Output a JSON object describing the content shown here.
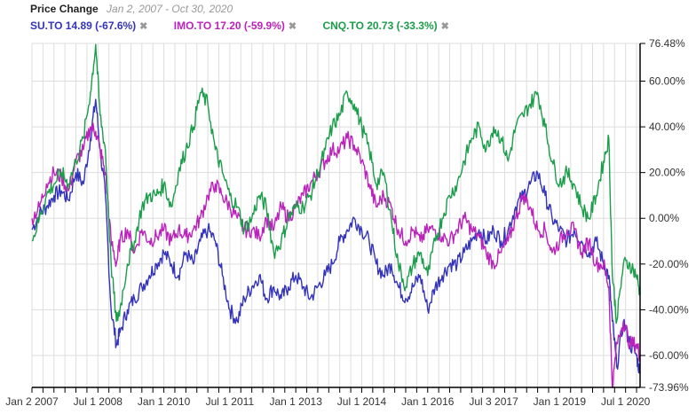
{
  "header": {
    "title": "Price Change",
    "range": "Jan 2, 2007 - Oct 30, 2020"
  },
  "legend": [
    {
      "label": "SU.TO 14.89 (-67.6%)",
      "color": "#3333bb",
      "remove": "✖"
    },
    {
      "label": "IMO.TO 17.20 (-59.9%)",
      "color": "#bb22bb",
      "remove": "✖"
    },
    {
      "label": "CNQ.TO 20.73 (-33.3%)",
      "color": "#1a9e4a",
      "remove": "✖"
    }
  ],
  "chart_data": {
    "type": "line",
    "title": "Price Change",
    "xlabel": "",
    "ylabel": "",
    "x_range": [
      2007.0,
      2020.83
    ],
    "ylim": [
      -73.96,
      76.48
    ],
    "grid": true,
    "legend_position": "top-left",
    "y_ticks": [
      "76.48%",
      "60.00%",
      "40.00%",
      "20.00%",
      "0.00%",
      "-20.00%",
      "-40.00%",
      "-60.00%",
      "-73.96%"
    ],
    "y_tick_values": [
      76.48,
      60,
      40,
      20,
      0,
      -20,
      -40,
      -60,
      -73.96
    ],
    "x_ticks": [
      "Jan 2 2007",
      "Jul 1 2008",
      "Jan 1 2010",
      "Jul 1 2011",
      "Jan 1 2013",
      "Jul 1 2014",
      "Jan 1 2016",
      "Jul 3 2017",
      "Jan 1 2019",
      "Jul 1 2020"
    ],
    "x_tick_values": [
      2007.0,
      2008.5,
      2010.0,
      2011.5,
      2013.0,
      2014.5,
      2016.0,
      2017.5,
      2019.0,
      2020.5
    ],
    "x": [
      2007.0,
      2007.17,
      2007.33,
      2007.5,
      2007.67,
      2007.83,
      2008.0,
      2008.17,
      2008.33,
      2008.45,
      2008.55,
      2008.67,
      2008.8,
      2008.92,
      2009.0,
      2009.17,
      2009.33,
      2009.5,
      2009.67,
      2009.83,
      2010.0,
      2010.17,
      2010.33,
      2010.5,
      2010.67,
      2010.83,
      2011.0,
      2011.17,
      2011.33,
      2011.5,
      2011.67,
      2011.83,
      2012.0,
      2012.17,
      2012.33,
      2012.5,
      2012.67,
      2012.83,
      2013.0,
      2013.17,
      2013.33,
      2013.5,
      2013.67,
      2013.83,
      2014.0,
      2014.17,
      2014.33,
      2014.5,
      2014.67,
      2014.83,
      2015.0,
      2015.17,
      2015.33,
      2015.5,
      2015.67,
      2015.83,
      2016.0,
      2016.17,
      2016.33,
      2016.5,
      2016.67,
      2016.83,
      2017.0,
      2017.17,
      2017.33,
      2017.5,
      2017.67,
      2017.83,
      2018.0,
      2018.17,
      2018.33,
      2018.5,
      2018.67,
      2018.83,
      2019.0,
      2019.17,
      2019.33,
      2019.5,
      2019.67,
      2019.83,
      2020.0,
      2020.12,
      2020.2,
      2020.3,
      2020.45,
      2020.6,
      2020.75,
      2020.83
    ],
    "series": [
      {
        "name": "SU.TO",
        "color": "#3333bb",
        "values": [
          -5,
          2,
          5,
          10,
          12,
          8,
          20,
          15,
          35,
          52,
          30,
          10,
          -40,
          -55,
          -50,
          -40,
          -35,
          -30,
          -25,
          -20,
          -15,
          -20,
          -25,
          -15,
          -20,
          -10,
          -5,
          -10,
          -25,
          -40,
          -45,
          -35,
          -30,
          -25,
          -35,
          -30,
          -35,
          -30,
          -25,
          -30,
          -35,
          -30,
          -25,
          -20,
          -10,
          -5,
          0,
          -5,
          -10,
          -20,
          -25,
          -20,
          -30,
          -35,
          -30,
          -25,
          -40,
          -30,
          -25,
          -20,
          -20,
          -15,
          -10,
          -5,
          -10,
          -5,
          -10,
          -5,
          5,
          10,
          15,
          20,
          10,
          0,
          -5,
          -10,
          -5,
          -10,
          -15,
          -10,
          -20,
          -25,
          -45,
          -65,
          -45,
          -55,
          -60,
          -68
        ]
      },
      {
        "name": "IMO.TO",
        "color": "#bb22bb",
        "values": [
          0,
          5,
          15,
          20,
          18,
          12,
          25,
          30,
          40,
          38,
          30,
          20,
          -10,
          -20,
          -10,
          -5,
          -15,
          -5,
          -10,
          -8,
          -5,
          -10,
          -5,
          -8,
          -5,
          0,
          10,
          15,
          10,
          5,
          0,
          -5,
          -5,
          -8,
          0,
          -5,
          5,
          0,
          5,
          10,
          15,
          20,
          25,
          30,
          30,
          35,
          32,
          25,
          15,
          5,
          10,
          5,
          -5,
          -10,
          -5,
          -10,
          -5,
          -5,
          -8,
          -10,
          -5,
          0,
          -5,
          -8,
          -15,
          -20,
          -15,
          -10,
          0,
          10,
          5,
          -5,
          -5,
          -15,
          -10,
          -5,
          -5,
          -15,
          -10,
          -20,
          -20,
          -30,
          -74,
          -55,
          -45,
          -55,
          -55,
          -60
        ]
      },
      {
        "name": "CNQ.TO",
        "color": "#1a9e4a",
        "values": [
          -10,
          0,
          10,
          15,
          20,
          15,
          25,
          35,
          55,
          76,
          45,
          30,
          -20,
          -45,
          -40,
          -20,
          -10,
          5,
          10,
          10,
          15,
          5,
          20,
          30,
          40,
          55,
          50,
          30,
          20,
          10,
          5,
          -5,
          0,
          10,
          5,
          -15,
          -10,
          0,
          5,
          5,
          10,
          20,
          30,
          40,
          45,
          55,
          50,
          40,
          30,
          15,
          20,
          0,
          -20,
          -30,
          -20,
          -15,
          -25,
          -10,
          0,
          10,
          15,
          25,
          35,
          40,
          30,
          40,
          35,
          25,
          40,
          45,
          50,
          55,
          40,
          25,
          15,
          20,
          15,
          5,
          0,
          10,
          25,
          35,
          -25,
          -45,
          -20,
          -20,
          -25,
          -33
        ]
      }
    ]
  }
}
